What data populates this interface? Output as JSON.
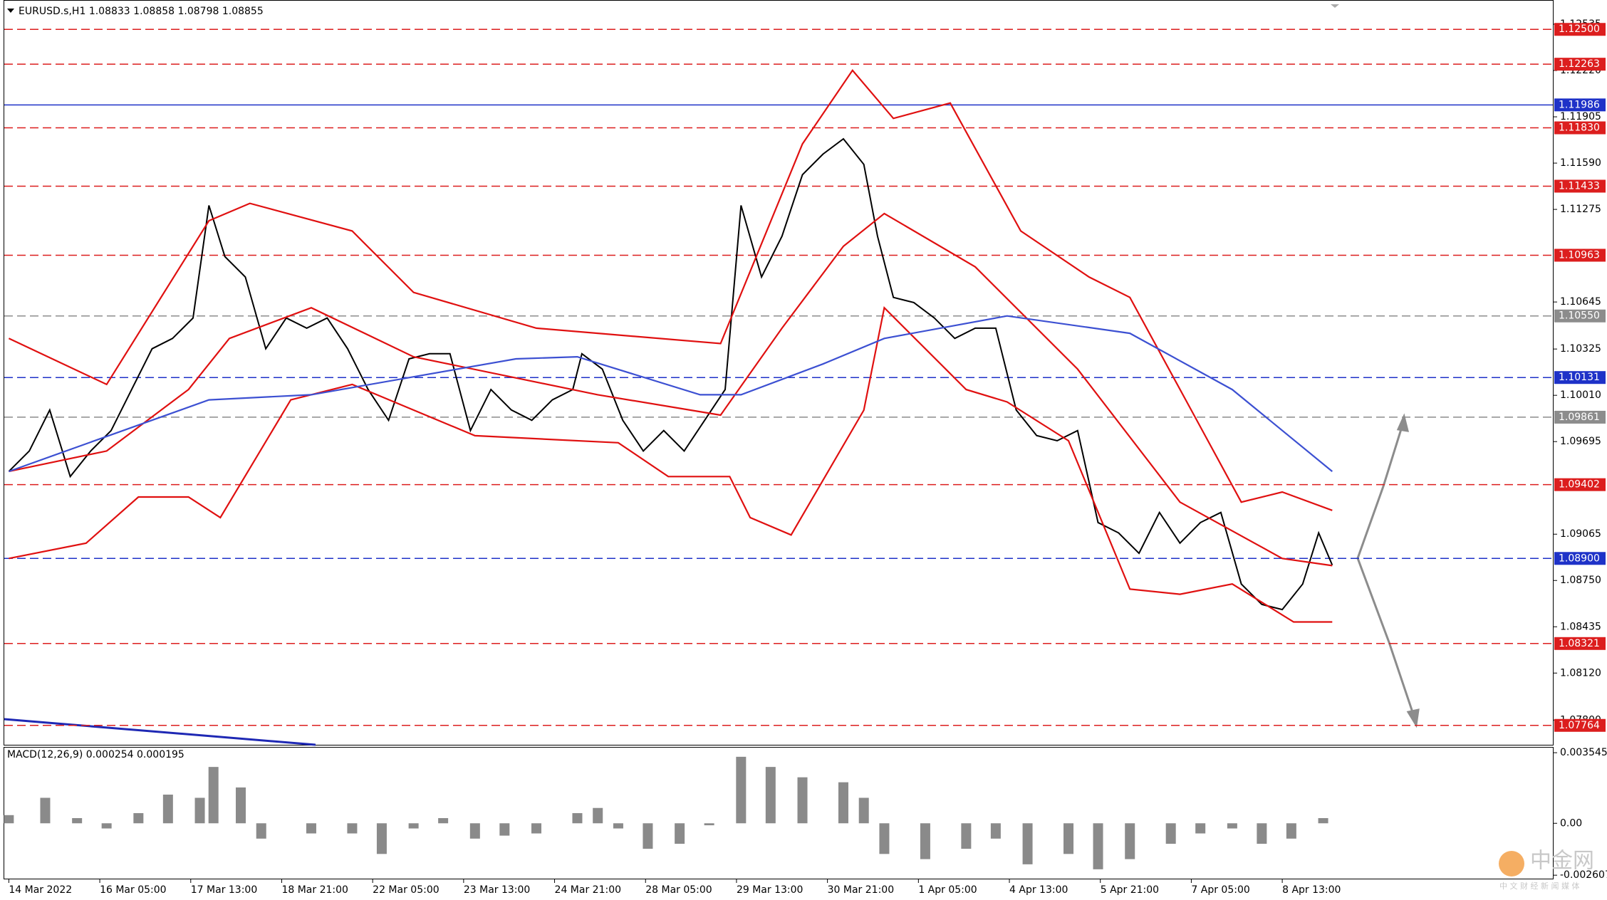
{
  "chart_data": [
    {
      "type": "line",
      "title": "EURUSD.s,H1  1.08833 1.08858 1.08798 1.08855",
      "xlim": [
        -2,
        679
      ],
      "ylim": [
        1.07632,
        1.12695
      ],
      "xticks": [
        {
          "value": 0,
          "label": "14 Mar 2022"
        },
        {
          "value": 40,
          "label": "16 Mar 05:00"
        },
        {
          "value": 80,
          "label": "17 Mar 13:00"
        },
        {
          "value": 120,
          "label": "18 Mar 21:00"
        },
        {
          "value": 160,
          "label": "22 Mar 05:00"
        },
        {
          "value": 200,
          "label": "23 Mar 13:00"
        },
        {
          "value": 240,
          "label": "24 Mar 21:00"
        },
        {
          "value": 280,
          "label": "28 Mar 05:00"
        },
        {
          "value": 320,
          "label": "29 Mar 13:00"
        },
        {
          "value": 360,
          "label": "30 Mar 21:00"
        },
        {
          "value": 400,
          "label": "1 Apr 05:00"
        },
        {
          "value": 440,
          "label": "4 Apr 13:00"
        },
        {
          "value": 480,
          "label": "5 Apr 21:00"
        },
        {
          "value": 520,
          "label": "7 Apr 05:00"
        },
        {
          "value": 560,
          "label": "8 Apr 13:00"
        }
      ],
      "yticks": [
        1.12535,
        {
          "value": 1.1222,
          "label": "1.12220"
        },
        1.11905,
        {
          "value": 1.1159,
          "label": "1.11590"
        },
        1.11275,
        1.10645,
        1.10325,
        {
          "value": 1.1001,
          "label": "1.10010"
        },
        1.09695,
        1.09065,
        {
          "value": 1.0875,
          "label": "1.08750"
        },
        1.08435,
        {
          "value": 1.0812,
          "label": "1.08120"
        },
        {
          "value": 1.078,
          "label": "1.07800"
        }
      ],
      "levels": [
        {
          "value": 1.125,
          "label": "1.12500",
          "color": "#dc1e1e",
          "style": "dashed"
        },
        {
          "value": 1.12263,
          "label": "1.12263",
          "color": "#dc1e1e",
          "style": "dashed"
        },
        {
          "value": 1.11986,
          "label": "1.11986",
          "color": "#1e32c8",
          "style": "solid"
        },
        {
          "value": 1.1183,
          "label": "1.11830",
          "color": "#dc1e1e",
          "style": "dashed"
        },
        {
          "value": 1.11433,
          "label": "1.11433",
          "color": "#dc1e1e",
          "style": "dashed"
        },
        {
          "value": 1.10963,
          "label": "1.10963",
          "color": "#dc1e1e",
          "style": "dashed"
        },
        {
          "value": 1.1055,
          "label": "1.10550",
          "color": "#8c8c8c",
          "style": "dashed"
        },
        {
          "value": 1.10131,
          "label": "1.10131",
          "color": "#1e32c8",
          "style": "dashed"
        },
        {
          "value": 1.09861,
          "label": "1.09861",
          "color": "#8c8c8c",
          "style": "dashed"
        },
        {
          "value": 1.09402,
          "label": "1.09402",
          "color": "#dc1e1e",
          "style": "dashed"
        },
        {
          "value": 1.089,
          "label": "1.08900",
          "color": "#1e32c8",
          "style": "dashed"
        },
        {
          "value": 1.08321,
          "label": "1.08321",
          "color": "#dc1e1e",
          "style": "dashed"
        },
        {
          "value": 1.07764,
          "label": "1.07764",
          "color": "#dc1e1e",
          "style": "dashed"
        }
      ],
      "series": [
        {
          "color": "#000000",
          "x": [
            0,
            9,
            18,
            27,
            36,
            45,
            54,
            63,
            72,
            81,
            88,
            95,
            104,
            113,
            122,
            131,
            140,
            149,
            158,
            167,
            176,
            185,
            194,
            203,
            212,
            221,
            230,
            239,
            248,
            252,
            261,
            270,
            279,
            288,
            297,
            306,
            315,
            322,
            331,
            340,
            349,
            358,
            367,
            376,
            382,
            389,
            398,
            407,
            416,
            425,
            434,
            443,
            452,
            461,
            470,
            479,
            488,
            497,
            506,
            515,
            524,
            533,
            542,
            551,
            560,
            569,
            576,
            582
          ],
          "values": [
            1.09492,
            1.09631,
            1.0991,
            1.09457,
            1.09631,
            1.0977,
            1.10049,
            1.10327,
            1.10397,
            1.10536,
            1.11302,
            1.10954,
            1.10815,
            1.10327,
            1.10536,
            1.10467,
            1.10536,
            1.10327,
            1.10049,
            1.0984,
            1.10258,
            1.10293,
            1.10293,
            1.0977,
            1.10049,
            1.0991,
            1.0984,
            1.09979,
            1.10049,
            1.10293,
            1.10188,
            1.0984,
            1.09631,
            1.0977,
            1.09631,
            1.0984,
            1.10049,
            1.11302,
            1.10815,
            1.11093,
            1.11511,
            1.11651,
            1.11755,
            1.11581,
            1.11093,
            1.10676,
            1.10641,
            1.10536,
            1.10397,
            1.10467,
            1.10467,
            1.0991,
            1.09736,
            1.09701,
            1.0977,
            1.09144,
            1.09074,
            1.08935,
            1.09213,
            1.09004,
            1.09144,
            1.09213,
            1.08726,
            1.08587,
            1.08552,
            1.08726,
            1.09074,
            1.08855
          ]
        },
        {
          "color": "#e01010",
          "x": [
            0,
            43,
            88,
            106,
            151,
            178,
            232,
            313,
            349,
            371,
            389,
            414,
            445,
            475,
            493,
            520,
            542,
            560,
            582
          ],
          "values": [
            1.10397,
            1.10084,
            1.11198,
            1.11316,
            1.11128,
            1.1071,
            1.10467,
            1.10362,
            1.1172,
            1.12221,
            1.11894,
            1.11999,
            1.11128,
            1.10815,
            1.10676,
            1.09909,
            1.09283,
            1.09352,
            1.09227
          ]
        },
        {
          "color": "#e01010",
          "x": [
            0,
            43,
            79,
            97,
            133,
            178,
            259,
            313,
            340,
            367,
            385,
            425,
            470,
            515,
            560,
            582
          ],
          "values": [
            1.09492,
            1.09631,
            1.10049,
            1.10397,
            1.10606,
            1.10272,
            1.10014,
            1.09875,
            1.10467,
            1.11024,
            1.11247,
            1.10884,
            1.10188,
            1.09283,
            1.089,
            1.08851
          ]
        },
        {
          "color": "#e01010",
          "x": [
            0,
            34,
            57,
            79,
            93,
            124,
            151,
            205,
            268,
            290,
            317,
            326,
            344,
            376,
            385,
            421,
            439,
            466,
            493,
            515,
            538,
            565,
            582
          ],
          "values": [
            1.089,
            1.09004,
            1.09318,
            1.09318,
            1.09178,
            1.09979,
            1.10084,
            1.09735,
            1.09687,
            1.09457,
            1.09457,
            1.09178,
            1.0906,
            1.09909,
            1.10606,
            1.10049,
            1.09965,
            1.09701,
            1.08691,
            1.08656,
            1.08726,
            1.08468,
            1.08468
          ]
        },
        {
          "color": "#3c50d2",
          "x": [
            0,
            88,
            133,
            223,
            250,
            304,
            322,
            358,
            385,
            439,
            493,
            538,
            582
          ],
          "values": [
            1.09492,
            1.09979,
            1.10014,
            1.10258,
            1.10272,
            1.10014,
            1.10014,
            1.10223,
            1.10397,
            1.1055,
            1.10432,
            1.10049,
            1.09492
          ]
        }
      ],
      "watermark": "中金网",
      "watermark_sub": "中 文 财 经 新 闻 媒 体"
    },
    {
      "type": "bar",
      "title": "MACD(12,26,9) 0.000254 0.000195",
      "color": "#8a8a8a",
      "ylim": [
        -0.00278,
        0.0038
      ],
      "yticks": [
        0.003545,
        {
          "value": 0,
          "label": "0.00"
        },
        -0.002607
      ],
      "x": [
        0,
        16,
        30,
        43,
        57,
        70,
        84,
        90,
        102,
        111,
        133,
        151,
        164,
        178,
        191,
        205,
        218,
        232,
        250,
        259,
        268,
        281,
        295,
        308,
        322,
        335,
        349,
        367,
        376,
        385,
        403,
        421,
        434,
        448,
        466,
        479,
        493,
        511,
        524,
        538,
        551,
        564,
        578
      ],
      "values": [
        0.00041,
        0.00128,
        0.00026,
        -0.00026,
        0.00051,
        0.00144,
        0.00128,
        0.00283,
        0.0018,
        -0.00077,
        -0.00051,
        -0.00051,
        -0.00154,
        -0.00026,
        0.00026,
        -0.00077,
        -0.00062,
        -0.00051,
        0.00051,
        0.00077,
        -0.00026,
        -0.00128,
        -0.00103,
        -0.0001,
        0.00334,
        0.00283,
        0.00231,
        0.00206,
        0.00128,
        -0.00154,
        -0.0018,
        -0.00128,
        -0.00077,
        -0.00206,
        -0.00154,
        -0.00231,
        -0.0018,
        -0.00103,
        -0.00051,
        -0.00026,
        -0.00103,
        -0.00077,
        0.00026
      ]
    }
  ]
}
